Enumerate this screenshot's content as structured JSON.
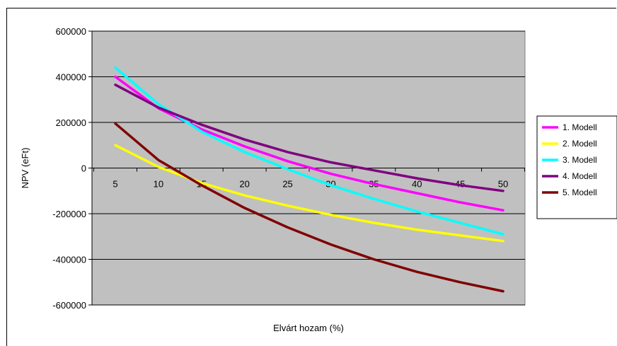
{
  "chart_data": {
    "type": "line",
    "xlabel": "Elvárt hozam (%)",
    "ylabel": "NPV (eFt)",
    "ylim": [
      -600000,
      600000
    ],
    "yticks": [
      "600000",
      "400000",
      "200000",
      "0",
      "-200000",
      "-400000",
      "-600000"
    ],
    "x": [
      5,
      10,
      15,
      20,
      25,
      30,
      35,
      40,
      45,
      50
    ],
    "xticks": [
      "5",
      "10",
      "15",
      "20",
      "25",
      "30",
      "35",
      "40",
      "45",
      "50"
    ],
    "plot_background": "#c0c0c0",
    "grid": true,
    "legend_position": "right",
    "series": [
      {
        "name": "1. Modell",
        "color": "#ff00ff",
        "values": [
          400000,
          262000,
          170000,
          95000,
          30000,
          -25000,
          -70000,
          -110000,
          -150000,
          -185000
        ]
      },
      {
        "name": "2. Modell",
        "color": "#ffff00",
        "values": [
          100000,
          5000,
          -65000,
          -120000,
          -165000,
          -205000,
          -240000,
          -270000,
          -295000,
          -320000
        ]
      },
      {
        "name": "3. Modell",
        "color": "#00ffff",
        "values": [
          440000,
          280000,
          160000,
          70000,
          -5000,
          -75000,
          -135000,
          -190000,
          -240000,
          -290000
        ]
      },
      {
        "name": "4. Modell",
        "color": "#800080",
        "values": [
          365000,
          265000,
          190000,
          125000,
          70000,
          25000,
          -10000,
          -45000,
          -75000,
          -100000
        ]
      },
      {
        "name": "5. Modell",
        "color": "#800000",
        "values": [
          195000,
          35000,
          -75000,
          -175000,
          -260000,
          -335000,
          -400000,
          -455000,
          -500000,
          -540000
        ]
      }
    ]
  }
}
